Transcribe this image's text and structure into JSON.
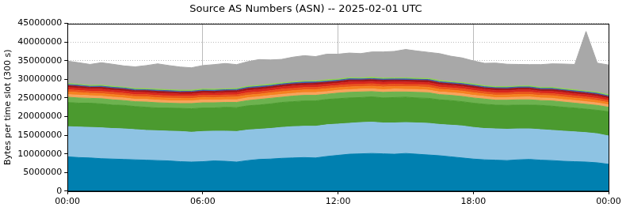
{
  "chart_data": {
    "type": "area",
    "title": "Source AS Numbers (ASN) -- 2025-02-01 UTC",
    "y_label": "Bytes per time slot (300 s)",
    "stacked": true,
    "grid": true,
    "categories": [
      "00:00",
      null,
      null,
      null,
      null,
      null,
      null,
      null,
      null,
      null,
      null,
      null,
      "06:00",
      null,
      null,
      null,
      null,
      null,
      null,
      null,
      null,
      null,
      null,
      null,
      "12:00",
      null,
      null,
      null,
      null,
      null,
      null,
      null,
      null,
      null,
      null,
      null,
      "18:00",
      null,
      null,
      null,
      null,
      null,
      null,
      null,
      null,
      null,
      null,
      null,
      "00:00"
    ],
    "ylim": [
      0,
      45000000
    ],
    "yticks": [
      0,
      5000000,
      10000000,
      15000000,
      20000000,
      25000000,
      30000000,
      35000000,
      40000000,
      45000000
    ],
    "series": [
      {
        "color": "#0080b0",
        "values": [
          9200000,
          9000000,
          8900000,
          8700000,
          8600000,
          8500000,
          8400000,
          8300000,
          8200000,
          8100000,
          7900000,
          7800000,
          7900000,
          8100000,
          8000000,
          7800000,
          8200000,
          8500000,
          8600000,
          8800000,
          8900000,
          9000000,
          8900000,
          9300000,
          9600000,
          9900000,
          10000000,
          10100000,
          10000000,
          9900000,
          10100000,
          9900000,
          9700000,
          9500000,
          9200000,
          8900000,
          8600000,
          8400000,
          8300000,
          8200000,
          8400000,
          8500000,
          8300000,
          8200000,
          8000000,
          7900000,
          7800000,
          7600000,
          7200000
        ]
      },
      {
        "color": "#8ec3e3",
        "values": [
          8100000,
          8200000,
          8200000,
          8300000,
          8200000,
          8200000,
          8100000,
          8000000,
          8000000,
          8000000,
          8100000,
          8000000,
          8100000,
          8000000,
          8100000,
          8200000,
          8200000,
          8100000,
          8200000,
          8300000,
          8400000,
          8400000,
          8500000,
          8500000,
          8400000,
          8300000,
          8400000,
          8400000,
          8300000,
          8400000,
          8300000,
          8400000,
          8500000,
          8400000,
          8500000,
          8600000,
          8500000,
          8400000,
          8400000,
          8400000,
          8300000,
          8200000,
          8200000,
          8100000,
          8100000,
          8000000,
          7900000,
          7800000,
          7600000
        ]
      },
      {
        "color": "#4b9a2f",
        "values": [
          6500000,
          6400000,
          6500000,
          6400000,
          6300000,
          6300000,
          6200000,
          6200000,
          6100000,
          6200000,
          6200000,
          6300000,
          6300000,
          6200000,
          6400000,
          6400000,
          6500000,
          6500000,
          6600000,
          6700000,
          6700000,
          6800000,
          6800000,
          6800000,
          6800000,
          6800000,
          6700000,
          6800000,
          6700000,
          6800000,
          6800000,
          6700000,
          6700000,
          6600000,
          6600000,
          6500000,
          6500000,
          6500000,
          6400000,
          6400000,
          6400000,
          6400000,
          6500000,
          6500000,
          6400000,
          6400000,
          6300000,
          6300000,
          6500000
        ]
      },
      {
        "color": "#6db24f",
        "values": [
          1400000,
          1400000,
          1300000,
          1400000,
          1400000,
          1300000,
          1300000,
          1400000,
          1400000,
          1300000,
          1300000,
          1400000,
          1400000,
          1400000,
          1300000,
          1400000,
          1400000,
          1500000,
          1500000,
          1400000,
          1500000,
          1500000,
          1500000,
          1400000,
          1500000,
          1500000,
          1500000,
          1400000,
          1500000,
          1500000,
          1400000,
          1500000,
          1500000,
          1400000,
          1400000,
          1400000,
          1400000,
          1400000,
          1300000,
          1400000,
          1400000,
          1400000,
          1300000,
          1400000,
          1400000,
          1300000,
          1300000,
          1300000,
          1200000
        ]
      },
      {
        "color": "#f7a35c",
        "values": [
          700000,
          750000,
          700000,
          650000,
          700000,
          700000,
          650000,
          700000,
          700000,
          650000,
          700000,
          700000,
          750000,
          700000,
          700000,
          700000,
          750000,
          700000,
          750000,
          750000,
          700000,
          750000,
          750000,
          700000,
          750000,
          700000,
          750000,
          700000,
          700000,
          750000,
          700000,
          750000,
          700000,
          700000,
          700000,
          750000,
          700000,
          700000,
          650000,
          700000,
          700000,
          750000,
          700000,
          700000,
          650000,
          700000,
          700000,
          650000,
          650000
        ]
      },
      {
        "color": "#f58220",
        "values": [
          700000,
          700000,
          650000,
          700000,
          700000,
          650000,
          700000,
          700000,
          650000,
          700000,
          700000,
          650000,
          700000,
          700000,
          700000,
          750000,
          700000,
          700000,
          700000,
          750000,
          750000,
          700000,
          750000,
          750000,
          700000,
          750000,
          700000,
          750000,
          750000,
          700000,
          700000,
          750000,
          750000,
          700000,
          700000,
          700000,
          700000,
          650000,
          700000,
          700000,
          750000,
          700000,
          650000,
          700000,
          700000,
          650000,
          700000,
          650000,
          600000
        ]
      },
      {
        "color": "#e8541c",
        "values": [
          600000,
          600000,
          550000,
          600000,
          600000,
          600000,
          550000,
          600000,
          600000,
          600000,
          550000,
          600000,
          600000,
          550000,
          600000,
          600000,
          650000,
          600000,
          600000,
          650000,
          600000,
          650000,
          600000,
          650000,
          600000,
          650000,
          600000,
          650000,
          600000,
          650000,
          600000,
          600000,
          650000,
          600000,
          600000,
          600000,
          650000,
          600000,
          600000,
          550000,
          600000,
          600000,
          600000,
          550000,
          600000,
          600000,
          550000,
          600000,
          550000
        ]
      },
      {
        "color": "#d7261e",
        "values": [
          600000,
          550000,
          600000,
          600000,
          550000,
          600000,
          600000,
          550000,
          600000,
          600000,
          600000,
          600000,
          550000,
          600000,
          600000,
          600000,
          600000,
          650000,
          600000,
          600000,
          650000,
          600000,
          650000,
          600000,
          600000,
          650000,
          650000,
          600000,
          650000,
          600000,
          650000,
          600000,
          600000,
          650000,
          600000,
          600000,
          600000,
          600000,
          650000,
          600000,
          600000,
          600000,
          550000,
          600000,
          600000,
          550000,
          600000,
          550000,
          550000
        ]
      },
      {
        "color": "#a0171b",
        "values": [
          500000,
          500000,
          450000,
          500000,
          500000,
          500000,
          450000,
          500000,
          500000,
          500000,
          450000,
          500000,
          500000,
          500000,
          500000,
          500000,
          550000,
          500000,
          500000,
          500000,
          550000,
          500000,
          550000,
          500000,
          500000,
          550000,
          500000,
          500000,
          550000,
          500000,
          500000,
          500000,
          550000,
          500000,
          500000,
          500000,
          500000,
          450000,
          500000,
          500000,
          500000,
          500000,
          450000,
          500000,
          500000,
          500000,
          450000,
          500000,
          450000
        ]
      },
      {
        "color": "#3a5fb0",
        "values": [
          300000,
          300000,
          250000,
          300000,
          300000,
          300000,
          300000,
          250000,
          300000,
          300000,
          300000,
          250000,
          300000,
          300000,
          300000,
          300000,
          300000,
          350000,
          300000,
          300000,
          300000,
          350000,
          300000,
          300000,
          300000,
          350000,
          300000,
          300000,
          300000,
          300000,
          350000,
          300000,
          300000,
          300000,
          300000,
          300000,
          300000,
          300000,
          250000,
          300000,
          300000,
          300000,
          300000,
          300000,
          250000,
          300000,
          300000,
          300000,
          250000
        ]
      },
      {
        "color": "#8fd14f",
        "values": [
          300000,
          250000,
          300000,
          300000,
          300000,
          250000,
          300000,
          300000,
          300000,
          250000,
          300000,
          300000,
          300000,
          300000,
          250000,
          300000,
          300000,
          300000,
          350000,
          300000,
          300000,
          300000,
          300000,
          350000,
          300000,
          300000,
          300000,
          350000,
          300000,
          300000,
          300000,
          300000,
          300000,
          350000,
          300000,
          300000,
          300000,
          300000,
          300000,
          300000,
          250000,
          300000,
          300000,
          300000,
          300000,
          300000,
          250000,
          300000,
          300000
        ]
      },
      {
        "color": "#a8a8a8",
        "values": [
          6000000,
          5800000,
          5600000,
          6000000,
          5900000,
          5700000,
          5800000,
          6200000,
          6800000,
          6500000,
          6200000,
          6000000,
          6300000,
          6600000,
          6800000,
          6400000,
          6600000,
          6900000,
          6500000,
          6300000,
          6600000,
          6800000,
          6500000,
          6900000,
          6700000,
          6600000,
          6500000,
          6800000,
          7000000,
          7100000,
          7600000,
          7300000,
          7000000,
          7200000,
          6800000,
          6600000,
          6200000,
          6000000,
          6300000,
          6000000,
          5800000,
          5700000,
          6100000,
          6300000,
          6600000,
          6800000,
          16000000,
          7800000,
          8000000
        ]
      }
    ]
  }
}
